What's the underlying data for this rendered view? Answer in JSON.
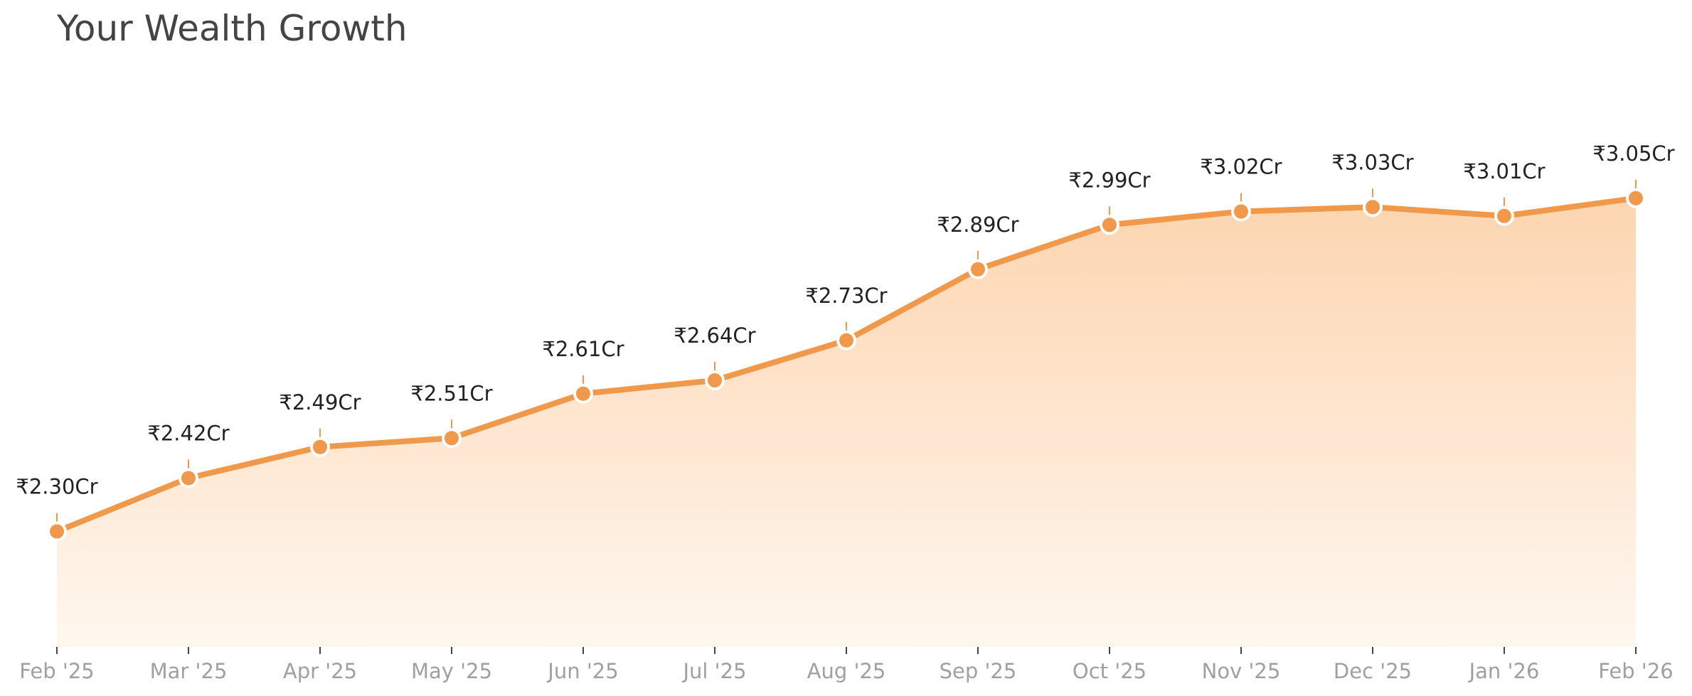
{
  "chart_data": {
    "type": "area",
    "title": "Your Wealth Growth",
    "xlabel": "",
    "ylabel": "",
    "unit": "Crore INR",
    "categories": [
      "Feb '25",
      "Mar '25",
      "Apr '25",
      "May '25",
      "Jun '25",
      "Jul '25",
      "Aug '25",
      "Sep '25",
      "Oct '25",
      "Nov '25",
      "Dec '25",
      "Jan '26",
      "Feb '26"
    ],
    "series": [
      {
        "values": [
          2.3,
          2.42,
          2.49,
          2.51,
          2.61,
          2.64,
          2.73,
          2.89,
          2.99,
          3.02,
          3.03,
          3.01,
          3.05
        ],
        "data_labels": [
          "₹2.30Cr",
          "₹2.42Cr",
          "₹2.49Cr",
          "₹2.51Cr",
          "₹2.61Cr",
          "₹2.64Cr",
          "₹2.73Cr",
          "₹2.89Cr",
          "₹2.99Cr",
          "₹3.02Cr",
          "₹3.03Cr",
          "₹3.01Cr",
          "₹3.05Cr"
        ],
        "color": "#f0994a"
      }
    ],
    "ylim": [
      2.04,
      3.24
    ],
    "grid": false,
    "legend": "none",
    "colors": {
      "line": "#f0994a",
      "fill_top": "#fdd5b0",
      "fill_bottom": "#fff7ef",
      "marker_edge": "#ffffff",
      "tick_label": "#a0a0a0",
      "data_label": "#222222",
      "title": "#444444"
    }
  }
}
